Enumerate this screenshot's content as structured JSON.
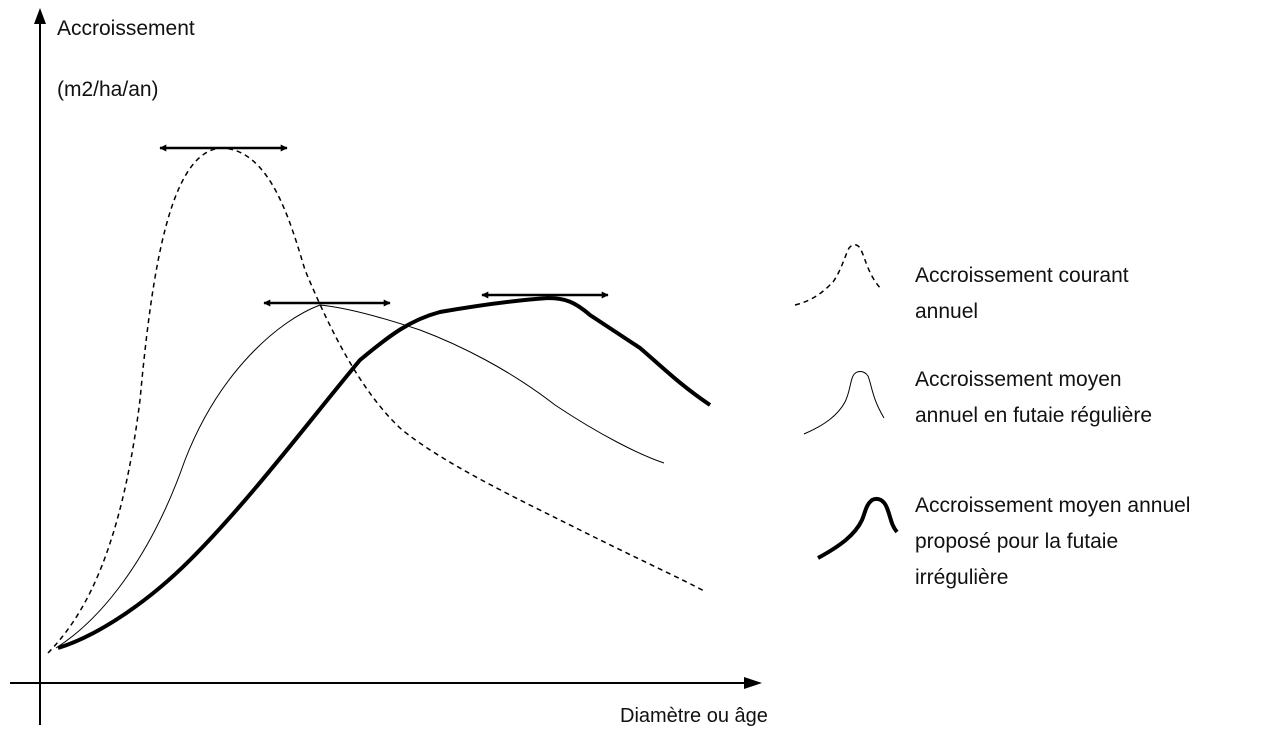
{
  "y_axis": {
    "label": "Accroissement",
    "unit": "(m2/ha/an)"
  },
  "x_axis": {
    "label": "Diamètre ou âge"
  },
  "legend": [
    {
      "line1": "Accroissement courant",
      "line2": "annuel",
      "style": "dashed"
    },
    {
      "line1": "Accroissement moyen",
      "line2": "annuel en futaie régulière",
      "style": "thin"
    },
    {
      "line1": "Accroissement moyen annuel",
      "line2": "proposé pour la futaie",
      "line3": "irrégulière",
      "style": "thick"
    }
  ],
  "colors": {
    "ink": "#000000",
    "background": "#ffffff"
  }
}
